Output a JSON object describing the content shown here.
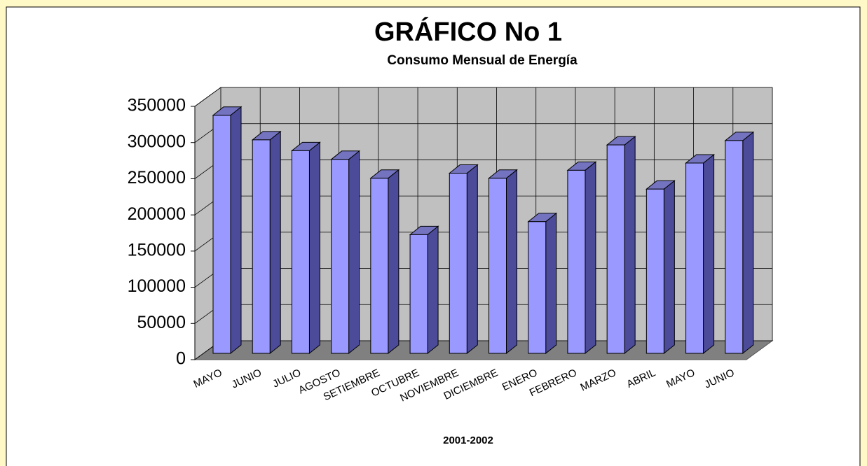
{
  "chart_data": {
    "type": "bar3d",
    "title": "GRÁFICO No 1",
    "subtitle": "Consumo Mensual de Energía",
    "x_label": "2001-2002",
    "categories": [
      "MAYO",
      "JUNIO",
      "JULIO",
      "AGOSTO",
      "SETIEMBRE",
      "OCTUBRE",
      "NOVIEMBRE",
      "DICIEMBRE",
      "ENERO",
      "FEBRERO",
      "MARZO",
      "ABRIL",
      "MAYO",
      "JUNIO"
    ],
    "values": [
      329000,
      295000,
      280000,
      268000,
      242000,
      164000,
      249000,
      242000,
      182000,
      253000,
      288000,
      227000,
      263000,
      294000
    ],
    "color": "#9999ff",
    "ylim": [
      0,
      350000
    ],
    "yticks": [
      0,
      50000,
      100000,
      150000,
      200000,
      250000,
      300000,
      350000
    ],
    "grid": true
  }
}
